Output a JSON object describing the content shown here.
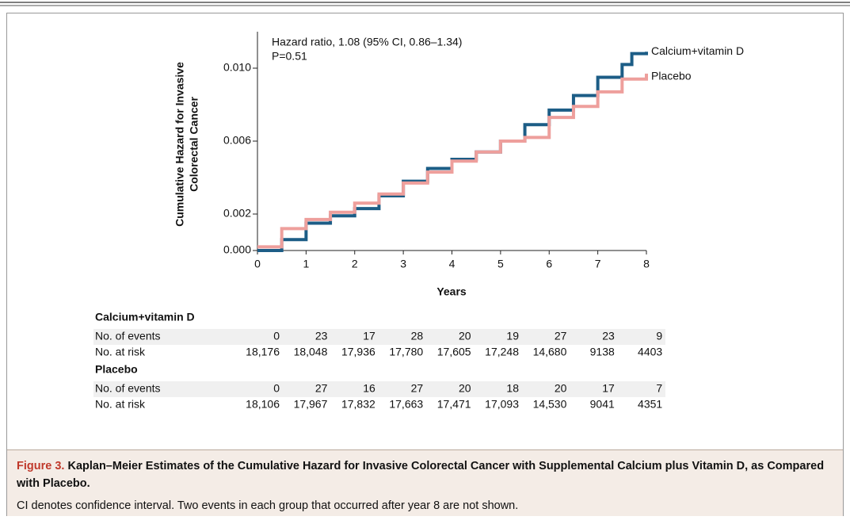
{
  "chart_data": {
    "type": "step-line",
    "y_label": [
      "Cumulative Hazard for Invasive",
      "Colorectal Cancer"
    ],
    "x_label": "Years",
    "annotations": [
      "Hazard ratio, 1.08 (95% CI, 0.86–1.34)",
      "P=0.51"
    ],
    "xlim": [
      0,
      8
    ],
    "xticks": [
      0,
      1,
      2,
      3,
      4,
      5,
      6,
      7,
      8
    ],
    "ylim": [
      0,
      0.012
    ],
    "yticks": [
      {
        "value": 0,
        "label": "0.000"
      },
      {
        "value": 0.002,
        "label": "0.002"
      },
      {
        "value": 0.006,
        "label": "0.006"
      },
      {
        "value": 0.01,
        "label": "0.010"
      }
    ],
    "series": [
      {
        "name": "Calcium+vitamin D",
        "color": "#1c5d86",
        "x": [
          0,
          0.5,
          1,
          1.5,
          2,
          2.5,
          3,
          3.5,
          4,
          4.5,
          5,
          5.5,
          6,
          6.5,
          7,
          7.5,
          7.7,
          8
        ],
        "values": [
          0,
          0.0006,
          0.0015,
          0.0019,
          0.0023,
          0.003,
          0.0038,
          0.0045,
          0.005,
          0.0054,
          0.006,
          0.0069,
          0.0077,
          0.0085,
          0.0095,
          0.0102,
          0.0108,
          0.0109
        ]
      },
      {
        "name": "Placebo",
        "color": "#ee9f9c",
        "x": [
          0,
          0.5,
          1,
          1.5,
          2,
          2.5,
          3,
          3.5,
          4,
          4.5,
          5,
          5.5,
          6,
          6.5,
          7,
          7.5,
          8
        ],
        "values": [
          0.0002,
          0.0012,
          0.0017,
          0.0021,
          0.0026,
          0.0031,
          0.0037,
          0.0043,
          0.0049,
          0.0054,
          0.006,
          0.0062,
          0.0073,
          0.0079,
          0.0087,
          0.0094,
          0.0097
        ]
      }
    ],
    "risk_table": [
      {
        "name": "Calcium+vitamin D",
        "rows": [
          {
            "label": "No. of events",
            "values": [
              0,
              23,
              17,
              28,
              20,
              19,
              27,
              23,
              9
            ]
          },
          {
            "label": "No. at risk",
            "values": [
              "18,176",
              "18,048",
              "17,936",
              "17,780",
              "17,605",
              "17,248",
              "14,680",
              9138,
              4403
            ]
          }
        ]
      },
      {
        "name": "Placebo",
        "rows": [
          {
            "label": "No. of events",
            "values": [
              0,
              27,
              16,
              27,
              20,
              18,
              20,
              17,
              7
            ]
          },
          {
            "label": "No. at risk",
            "values": [
              "18,106",
              "17,967",
              "17,832",
              "17,663",
              "17,471",
              "17,093",
              "14,530",
              9041,
              4351
            ]
          }
        ]
      }
    ]
  },
  "caption": {
    "label": "Figure 3.",
    "title": "Kaplan–Meier Estimates of the Cumulative Hazard for Invasive Colorectal Cancer with Supplemental Calcium plus Vitamin D, as Compared with Placebo.",
    "note": "CI denotes confidence interval. Two events in each group that occurred after year 8 are not shown."
  }
}
